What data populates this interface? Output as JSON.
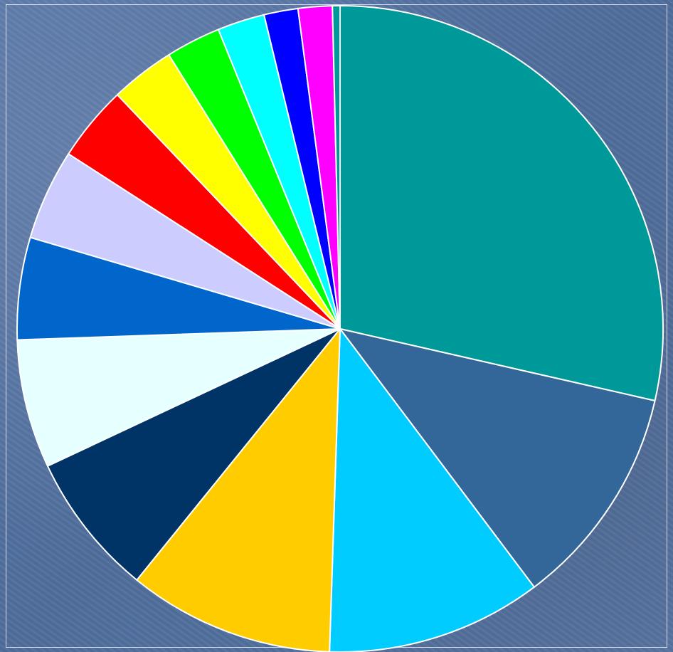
{
  "chart_data": {
    "type": "pie",
    "title": "",
    "start_angle_deg": 0,
    "direction": "clockwise",
    "slice_border_color": "#ffffff",
    "series": [
      {
        "name": "",
        "value": 30.2,
        "color": "#009999"
      },
      {
        "name": "",
        "value": 11.8,
        "color": "#336699"
      },
      {
        "name": "",
        "value": 11.4,
        "color": "#00CCFF"
      },
      {
        "name": "",
        "value": 10.9,
        "color": "#FFCC00"
      },
      {
        "name": "",
        "value": 7.6,
        "color": "#003366"
      },
      {
        "name": "",
        "value": 6.8,
        "color": "#E6FFFF"
      },
      {
        "name": "",
        "value": 5.4,
        "color": "#0066CC"
      },
      {
        "name": "",
        "value": 4.8,
        "color": "#CCCCFF"
      },
      {
        "name": "",
        "value": 4.0,
        "color": "#FF0000"
      },
      {
        "name": "",
        "value": 3.4,
        "color": "#FFFF00"
      },
      {
        "name": "",
        "value": 2.9,
        "color": "#00FF00"
      },
      {
        "name": "",
        "value": 2.5,
        "color": "#00FFFF"
      },
      {
        "name": "",
        "value": 1.8,
        "color": "#0000FF"
      },
      {
        "name": "",
        "value": 1.8,
        "color": "#FF00FF"
      },
      {
        "name": "",
        "value": 0.4,
        "color": "#009999"
      }
    ]
  }
}
